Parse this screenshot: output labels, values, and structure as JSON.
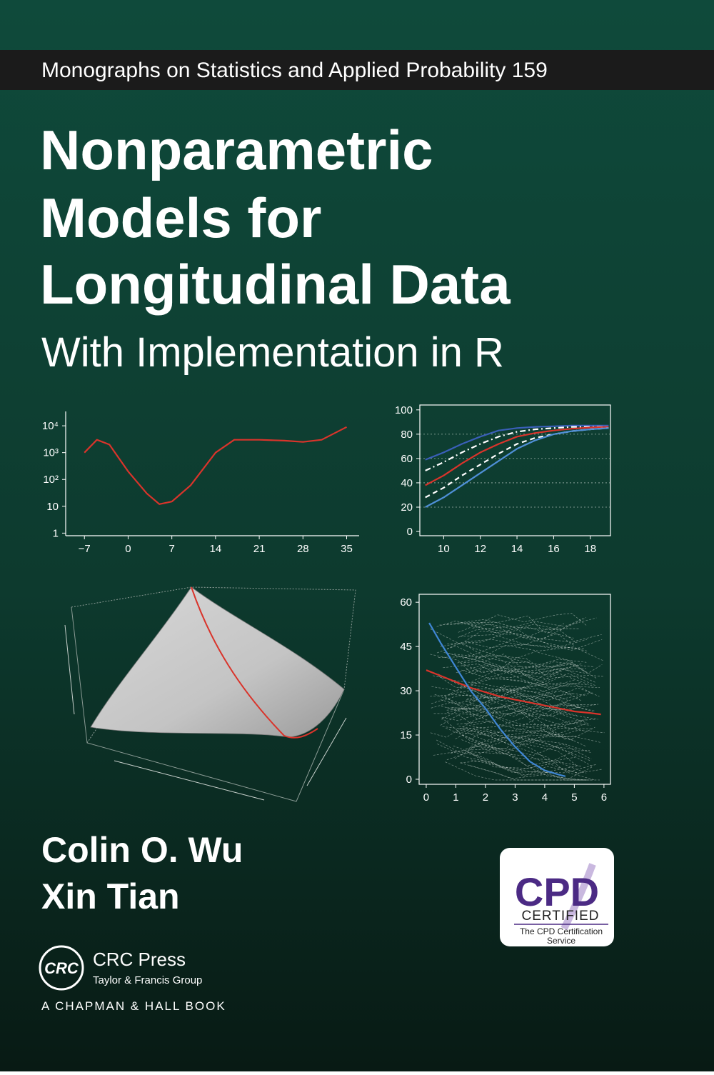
{
  "series_label": "Monographs on Statistics and Applied Probability 159",
  "title": [
    "Nonparametric",
    "Models for",
    "Longitudinal Data"
  ],
  "subtitle": "With Implementation in R",
  "figures": [
    {
      "type": "line",
      "log_y": true,
      "xlim": [
        -10,
        37
      ],
      "ylim": [
        0.8,
        56000
      ],
      "xticks": [
        {
          "value": -7,
          "label": "−7"
        },
        0,
        7,
        14,
        21,
        28,
        35
      ],
      "yticks": [
        1,
        10,
        {
          "value": 100,
          "label": "10²"
        },
        {
          "value": 1000,
          "label": "10³"
        },
        {
          "value": 10000,
          "label": "10⁴"
        }
      ],
      "series": [
        {
          "color": "#d9342b",
          "style": "solid",
          "x": [
            -7,
            -5,
            -3,
            0,
            3,
            5,
            7,
            10,
            14,
            17,
            21,
            25,
            28,
            31,
            35
          ],
          "values": [
            1000,
            3000,
            2000,
            200,
            30,
            12,
            15,
            60,
            1000,
            3000,
            3000,
            2800,
            2500,
            3000,
            9000
          ]
        }
      ]
    },
    {
      "type": "line",
      "xlim": [
        8.7,
        19.1
      ],
      "ylim": [
        -3.5,
        104
      ],
      "xticks": [
        10,
        12,
        14,
        16,
        18
      ],
      "yticks": [
        0,
        20,
        40,
        60,
        80,
        100
      ],
      "grid": true,
      "x": [
        9,
        10,
        11,
        12,
        13,
        14,
        15,
        16,
        17,
        18,
        19
      ],
      "series": [
        {
          "color": "#3a5fb8",
          "style": "solid",
          "values": [
            59,
            65,
            72,
            78,
            83,
            85,
            86,
            86.5,
            87,
            87,
            87
          ]
        },
        {
          "color": "#ffffff",
          "style": "dashdot",
          "values": [
            50,
            57,
            65,
            72,
            78,
            82,
            84,
            85,
            86,
            86,
            86
          ]
        },
        {
          "color": "#d9342b",
          "style": "solid",
          "values": [
            38,
            46,
            56,
            65,
            72,
            78,
            81,
            83,
            84.5,
            85.5,
            86
          ]
        },
        {
          "color": "#ffffff",
          "style": "dashed",
          "values": [
            28,
            36,
            46,
            55,
            64,
            72,
            77,
            80,
            82.5,
            84,
            85
          ]
        },
        {
          "color": "#4f8fd6",
          "style": "solid",
          "values": [
            20,
            28,
            38,
            48,
            58,
            68,
            75,
            80,
            82.5,
            84,
            85
          ]
        }
      ]
    },
    {
      "type": "line",
      "xlim": [
        -0.24,
        6.22
      ],
      "ylim": [
        -1.7,
        62.7
      ],
      "xticks": [
        0,
        1,
        2,
        3,
        4,
        5,
        6
      ],
      "yticks": [
        0,
        15,
        30,
        45,
        60
      ],
      "series": [
        {
          "color": "#d9342b",
          "style": "solid",
          "x": [
            0,
            0.5,
            1,
            1.5,
            2,
            2.5,
            3,
            3.5,
            4,
            4.5,
            5,
            5.5,
            5.9
          ],
          "values": [
            37,
            35,
            33,
            31,
            29.5,
            28,
            27,
            26,
            25,
            24,
            23,
            22.5,
            22
          ]
        },
        {
          "color": "#3f86d4",
          "style": "solid",
          "x": [
            0.1,
            0.5,
            1,
            1.5,
            2,
            2.5,
            3,
            3.5,
            4,
            4.5,
            4.7
          ],
          "values": [
            53,
            46,
            38,
            30,
            24,
            17,
            11,
            6,
            3,
            1.5,
            1
          ]
        }
      ]
    }
  ],
  "authors": [
    "Colin O. Wu",
    "Xin Tian"
  ],
  "publisher": {
    "logo": "CRC",
    "name": "CRC Press",
    "group": "Taylor & Francis Group",
    "imprint": "A CHAPMAN & HALL BOOK"
  },
  "badge": {
    "mark": "CPD",
    "label": "CERTIFIED",
    "service": [
      "The CPD Certification",
      "Service"
    ]
  }
}
